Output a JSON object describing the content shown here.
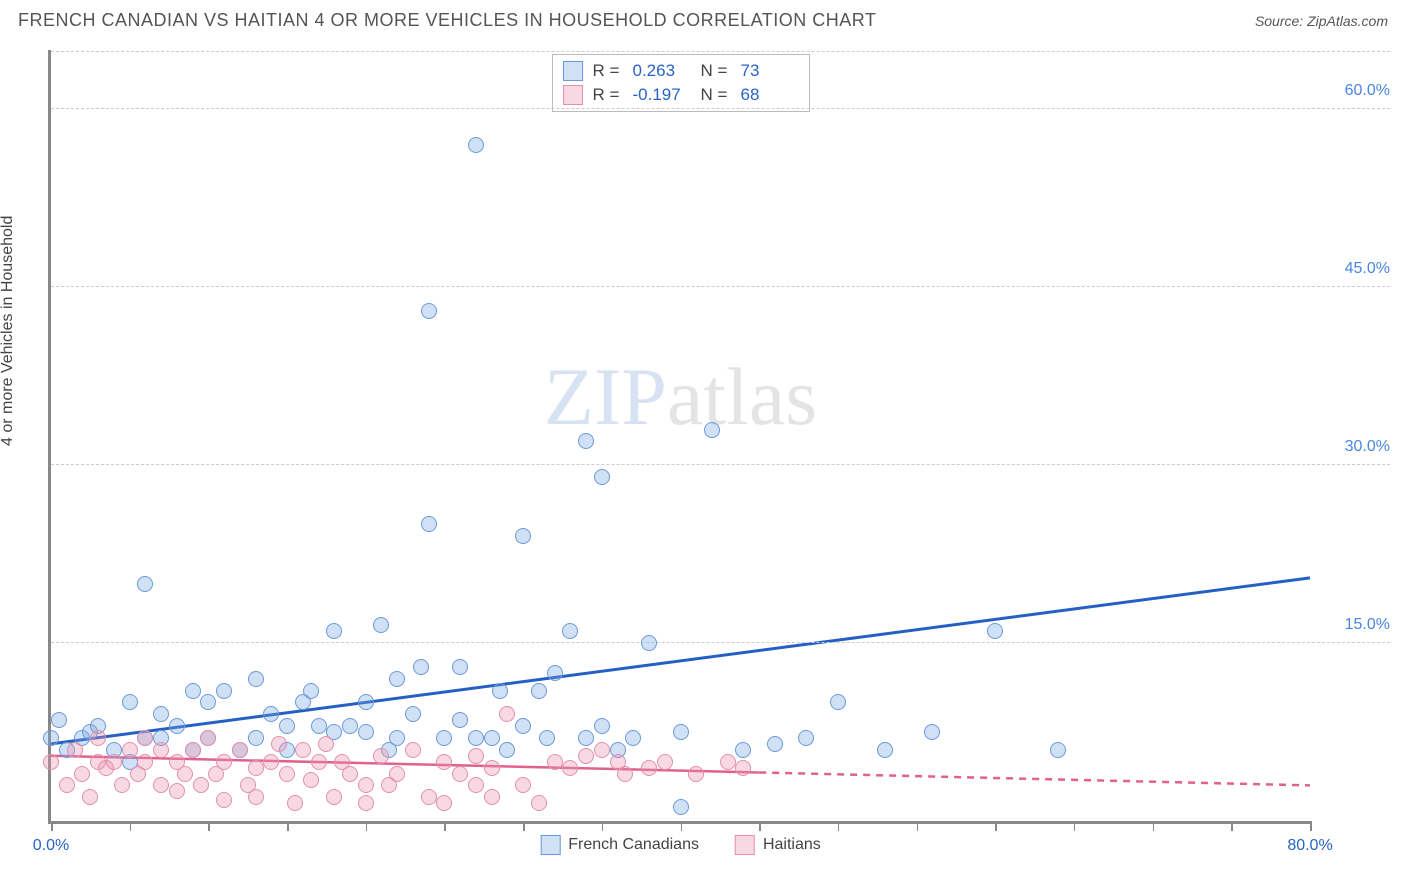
{
  "header": {
    "title": "FRENCH CANADIAN VS HAITIAN 4 OR MORE VEHICLES IN HOUSEHOLD CORRELATION CHART",
    "source_prefix": "Source: ",
    "source": "ZipAtlas.com"
  },
  "chart": {
    "type": "scatter",
    "ylabel": "4 or more Vehicles in Household",
    "xlim": [
      0,
      80
    ],
    "ylim": [
      0,
      65
    ],
    "x_tick_step": 5,
    "x_tick_labels": {
      "0": "0.0%",
      "80": "80.0%"
    },
    "x_tick_label_color_left": "#2864c8",
    "x_tick_label_color_right": "#2864c8",
    "y_ticks": [
      15,
      30,
      45,
      60
    ],
    "y_tick_labels": {
      "15": "15.0%",
      "30": "30.0%",
      "45": "45.0%",
      "60": "60.0%"
    },
    "y_tick_color": "#4a86e0",
    "grid_color": "#cccccc",
    "axis_color": "#888888",
    "background_color": "#ffffff",
    "marker_radius": 8,
    "marker_border_width": 1.5,
    "series": [
      {
        "name": "French Canadians",
        "color_fill": "rgba(120,165,225,0.35)",
        "color_stroke": "#6a9ad8",
        "R_label": "R =",
        "R": "0.263",
        "N_label": "N =",
        "N": "73",
        "R_color": "#2864c8",
        "trend": {
          "x1": 0,
          "y1": 6.5,
          "x2": 80,
          "y2": 20.5,
          "color": "#2460c4",
          "width": 3,
          "dash_to_x": 80
        },
        "points": [
          [
            0,
            7
          ],
          [
            0.5,
            8.5
          ],
          [
            1,
            6
          ],
          [
            2,
            7
          ],
          [
            2.5,
            7.5
          ],
          [
            3,
            8
          ],
          [
            4,
            6
          ],
          [
            5,
            10
          ],
          [
            5,
            5
          ],
          [
            6,
            7
          ],
          [
            6,
            20
          ],
          [
            7,
            9
          ],
          [
            7,
            7
          ],
          [
            8,
            8
          ],
          [
            9,
            6
          ],
          [
            9,
            11
          ],
          [
            10,
            10
          ],
          [
            10,
            7
          ],
          [
            11,
            11
          ],
          [
            12,
            6
          ],
          [
            13,
            12
          ],
          [
            13,
            7
          ],
          [
            14,
            9
          ],
          [
            15,
            8
          ],
          [
            15,
            6
          ],
          [
            16,
            10
          ],
          [
            16.5,
            11
          ],
          [
            17,
            8
          ],
          [
            18,
            7.5
          ],
          [
            18,
            16
          ],
          [
            19,
            8
          ],
          [
            20,
            7.5
          ],
          [
            20,
            10
          ],
          [
            21,
            16.5
          ],
          [
            21.5,
            6
          ],
          [
            22,
            12
          ],
          [
            22,
            7
          ],
          [
            23,
            9
          ],
          [
            23.5,
            13
          ],
          [
            24,
            25
          ],
          [
            24,
            43
          ],
          [
            25,
            7
          ],
          [
            26,
            8.5
          ],
          [
            26,
            13
          ],
          [
            27,
            7
          ],
          [
            27,
            57
          ],
          [
            28,
            7
          ],
          [
            28.5,
            11
          ],
          [
            29,
            6
          ],
          [
            30,
            8
          ],
          [
            30,
            24
          ],
          [
            31,
            11
          ],
          [
            31.5,
            7
          ],
          [
            32,
            12.5
          ],
          [
            33,
            16
          ],
          [
            34,
            7
          ],
          [
            34,
            32
          ],
          [
            35,
            8
          ],
          [
            35,
            29
          ],
          [
            36,
            6
          ],
          [
            37,
            7
          ],
          [
            38,
            15
          ],
          [
            40,
            7.5
          ],
          [
            40,
            1.2
          ],
          [
            42,
            33
          ],
          [
            44,
            6
          ],
          [
            46,
            6.5
          ],
          [
            48,
            7
          ],
          [
            50,
            10
          ],
          [
            53,
            6
          ],
          [
            56,
            7.5
          ],
          [
            60,
            16
          ],
          [
            64,
            6
          ]
        ]
      },
      {
        "name": "Haitians",
        "color_fill": "rgba(235,145,175,0.35)",
        "color_stroke": "#e390ac",
        "R_label": "R =",
        "R": "-0.197",
        "N_label": "N =",
        "N": "68",
        "R_color": "#2864c8",
        "trend": {
          "x1": 0,
          "y1": 5.5,
          "x2": 80,
          "y2": 3.0,
          "color": "#e06090",
          "width": 2.5,
          "solid_to_x": 45
        },
        "points": [
          [
            0,
            5
          ],
          [
            1,
            3
          ],
          [
            1.5,
            6
          ],
          [
            2,
            4
          ],
          [
            2.5,
            2
          ],
          [
            3,
            7
          ],
          [
            3,
            5
          ],
          [
            3.5,
            4.5
          ],
          [
            4,
            5
          ],
          [
            4.5,
            3
          ],
          [
            5,
            6
          ],
          [
            5.5,
            4
          ],
          [
            6,
            7
          ],
          [
            6,
            5
          ],
          [
            7,
            3
          ],
          [
            7,
            6
          ],
          [
            8,
            5
          ],
          [
            8,
            2.5
          ],
          [
            8.5,
            4
          ],
          [
            9,
            6
          ],
          [
            9.5,
            3
          ],
          [
            10,
            7
          ],
          [
            10.5,
            4
          ],
          [
            11,
            5
          ],
          [
            11,
            1.8
          ],
          [
            12,
            6
          ],
          [
            12.5,
            3
          ],
          [
            13,
            4.5
          ],
          [
            13,
            2
          ],
          [
            14,
            5
          ],
          [
            14.5,
            6.5
          ],
          [
            15,
            4
          ],
          [
            15.5,
            1.5
          ],
          [
            16,
            6
          ],
          [
            16.5,
            3.5
          ],
          [
            17,
            5
          ],
          [
            17.5,
            6.5
          ],
          [
            18,
            2
          ],
          [
            18.5,
            5
          ],
          [
            19,
            4
          ],
          [
            20,
            3
          ],
          [
            20,
            1.5
          ],
          [
            21,
            5.5
          ],
          [
            21.5,
            3
          ],
          [
            22,
            4
          ],
          [
            23,
            6
          ],
          [
            24,
            2
          ],
          [
            25,
            5
          ],
          [
            25,
            1.5
          ],
          [
            26,
            4
          ],
          [
            27,
            3
          ],
          [
            27,
            5.5
          ],
          [
            28,
            2
          ],
          [
            28,
            4.5
          ],
          [
            29,
            9
          ],
          [
            30,
            3
          ],
          [
            31,
            1.5
          ],
          [
            32,
            5
          ],
          [
            33,
            4.5
          ],
          [
            34,
            5.5
          ],
          [
            35,
            6
          ],
          [
            36,
            5
          ],
          [
            36.5,
            4
          ],
          [
            38,
            4.5
          ],
          [
            39,
            5
          ],
          [
            41,
            4
          ],
          [
            43,
            5
          ],
          [
            44,
            4.5
          ]
        ]
      }
    ],
    "legend_bottom": [
      {
        "swatch_fill": "rgba(120,165,225,0.35)",
        "swatch_stroke": "#6a9ad8",
        "label": "French Canadians"
      },
      {
        "swatch_fill": "rgba(235,145,175,0.35)",
        "swatch_stroke": "#e390ac",
        "label": "Haitians"
      }
    ],
    "watermark": {
      "z": "ZIP",
      "rest": "atlas"
    }
  }
}
